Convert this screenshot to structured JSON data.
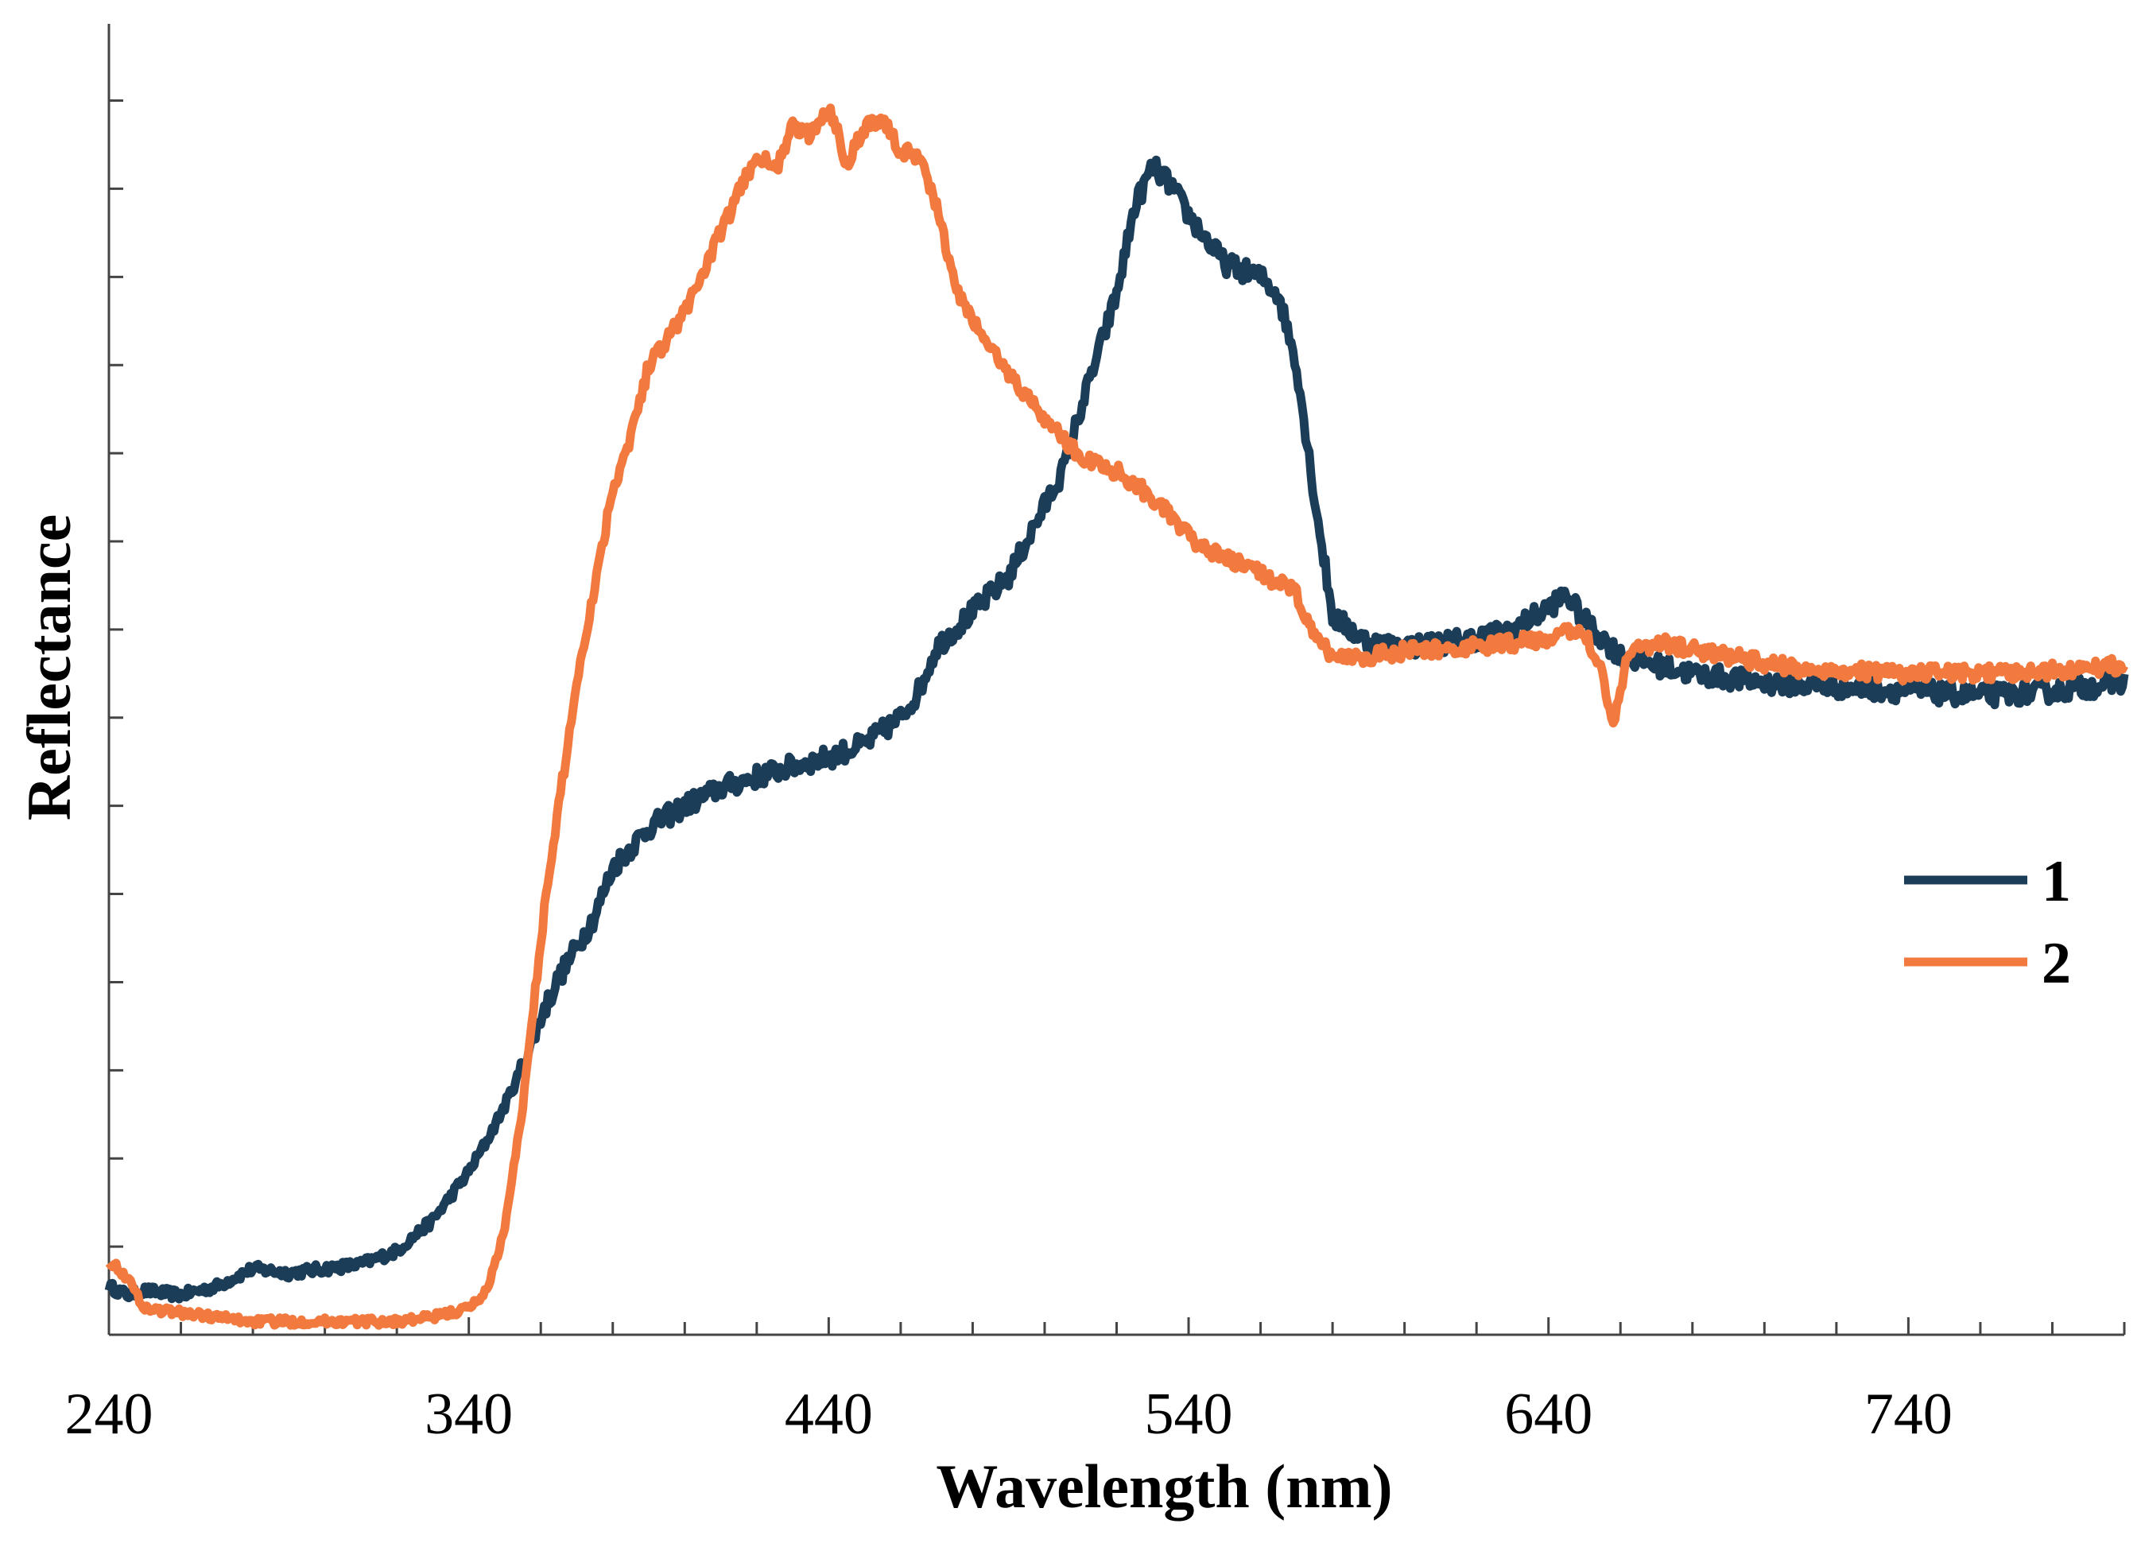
{
  "chart_data": {
    "type": "line",
    "title": "",
    "xlabel": "Wavelength (nm)",
    "ylabel": "Reflectance",
    "xlim": [
      240,
      800
    ],
    "ylim": [
      0,
      14.6
    ],
    "x_major_ticks": [
      240,
      340,
      440,
      540,
      640,
      740
    ],
    "x_tick_labels": [
      "240",
      "340",
      "440",
      "540",
      "640",
      "740"
    ],
    "x_minor_step": 20,
    "y_ticks": [
      1,
      2,
      3,
      4,
      5,
      6,
      7,
      8,
      9,
      10,
      11,
      12,
      13,
      14
    ],
    "y_tick_labels_shown": false,
    "grid": false,
    "legend_position": "right",
    "series": [
      {
        "name": "1",
        "color": "#1c3d58",
        "noise": 0.12,
        "x": [
          240,
          245,
          250,
          260,
          270,
          280,
          290,
          300,
          310,
          320,
          330,
          340,
          345,
          350,
          355,
          360,
          365,
          370,
          375,
          380,
          390,
          400,
          410,
          420,
          430,
          440,
          450,
          460,
          465,
          470,
          480,
          490,
          500,
          505,
          510,
          520,
          525,
          530,
          535,
          540,
          550,
          560,
          565,
          570,
          575,
          580,
          590,
          600,
          610,
          620,
          630,
          640,
          645,
          650,
          660,
          670,
          680,
          700,
          720,
          740,
          760,
          780,
          790,
          800
        ],
        "y": [
          0.55,
          0.45,
          0.5,
          0.45,
          0.55,
          0.75,
          0.7,
          0.75,
          0.8,
          0.95,
          1.3,
          1.85,
          2.2,
          2.6,
          3.05,
          3.6,
          4.05,
          4.4,
          4.75,
          5.3,
          5.75,
          6.0,
          6.2,
          6.33,
          6.45,
          6.55,
          6.7,
          7.0,
          7.3,
          7.8,
          8.2,
          8.6,
          9.4,
          9.8,
          10.5,
          11.8,
          12.8,
          13.25,
          13.05,
          12.7,
          12.15,
          12.0,
          11.8,
          11.0,
          9.5,
          8.15,
          7.85,
          7.8,
          7.85,
          7.9,
          8.0,
          8.25,
          8.4,
          8.1,
          7.7,
          7.6,
          7.5,
          7.4,
          7.35,
          7.3,
          7.25,
          7.3,
          7.35,
          7.4
        ]
      },
      {
        "name": "2",
        "color": "#f27a3e",
        "noise": 0.09,
        "x": [
          240,
          245,
          250,
          260,
          270,
          280,
          290,
          300,
          310,
          320,
          330,
          340,
          345,
          350,
          355,
          360,
          365,
          370,
          375,
          380,
          385,
          390,
          400,
          410,
          420,
          425,
          430,
          435,
          440,
          445,
          450,
          455,
          460,
          465,
          470,
          475,
          480,
          490,
          500,
          510,
          520,
          530,
          540,
          550,
          560,
          570,
          575,
          580,
          590,
          600,
          620,
          640,
          650,
          655,
          658,
          662,
          670,
          690,
          710,
          740,
          770,
          800
        ],
        "y": [
          0.85,
          0.65,
          0.3,
          0.25,
          0.2,
          0.15,
          0.15,
          0.15,
          0.15,
          0.15,
          0.2,
          0.3,
          0.5,
          1.2,
          2.6,
          4.5,
          6.0,
          7.4,
          8.5,
          9.6,
          10.2,
          11.0,
          11.6,
          12.5,
          13.4,
          13.2,
          13.7,
          13.6,
          13.95,
          13.3,
          13.7,
          13.8,
          13.4,
          13.4,
          12.8,
          11.9,
          11.5,
          10.9,
          10.4,
          9.95,
          9.8,
          9.5,
          9.05,
          8.8,
          8.65,
          8.4,
          7.9,
          7.7,
          7.7,
          7.75,
          7.8,
          7.9,
          8.0,
          7.5,
          6.9,
          7.75,
          7.85,
          7.7,
          7.55,
          7.5,
          7.5,
          7.6
        ]
      }
    ]
  }
}
